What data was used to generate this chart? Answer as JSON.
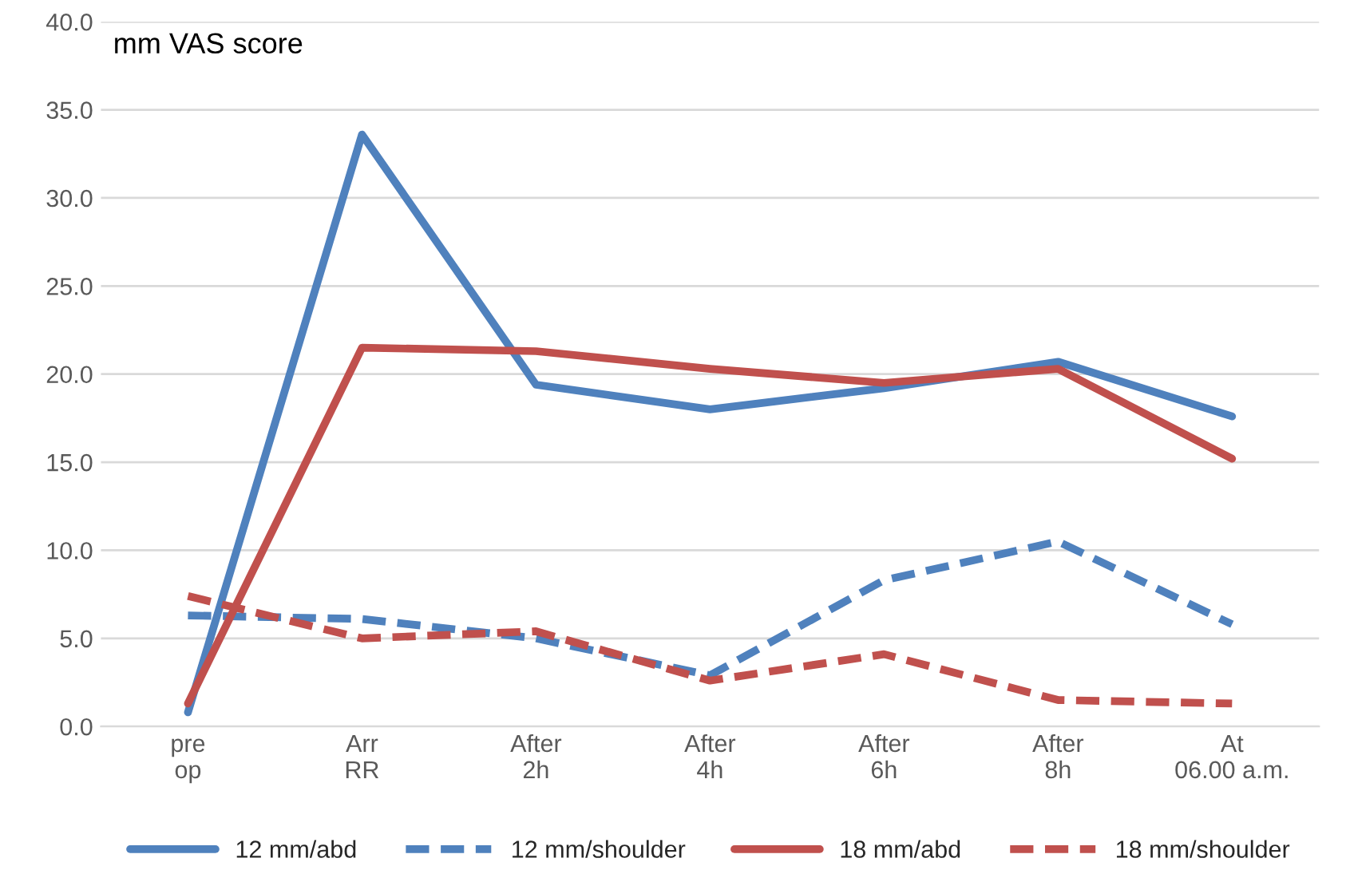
{
  "chart_data": {
    "type": "line",
    "ylabel": "mm VAS score",
    "categories": [
      "pre\nop",
      "Arr\nRR",
      "After\n2h",
      "After\n4h",
      "After\n6h",
      "After\n8h",
      "At\n06.00 a.m."
    ],
    "series": [
      {
        "name": "12 mm/abd",
        "color": "#4f81bd",
        "line_style": "solid",
        "values": [
          0.8,
          33.6,
          19.4,
          18.0,
          19.2,
          20.7,
          17.6
        ]
      },
      {
        "name": "12 mm/shoulder",
        "color": "#4f81bd",
        "line_style": "dashed",
        "values": [
          6.3,
          6.1,
          5.0,
          2.9,
          8.3,
          10.5,
          5.8
        ]
      },
      {
        "name": "18 mm/abd",
        "color": "#c0504d",
        "line_style": "solid",
        "values": [
          1.3,
          21.5,
          21.3,
          20.3,
          19.5,
          20.3,
          15.2
        ]
      },
      {
        "name": "18 mm/shoulder",
        "color": "#c0504d",
        "line_style": "dashed",
        "values": [
          7.4,
          5.0,
          5.4,
          2.6,
          4.1,
          1.5,
          1.3
        ]
      }
    ],
    "ylim": [
      0,
      40
    ],
    "yticks": [
      {
        "value": 0,
        "label": "0.0"
      },
      {
        "value": 5,
        "label": "5.0"
      },
      {
        "value": 10,
        "label": "10.0"
      },
      {
        "value": 15,
        "label": "15.0"
      },
      {
        "value": 20,
        "label": "20.0"
      },
      {
        "value": 25,
        "label": "25.0"
      },
      {
        "value": 30,
        "label": "30.0"
      },
      {
        "value": 35,
        "label": "35.0"
      },
      {
        "value": 40,
        "label": "40.0"
      }
    ],
    "grid": "y",
    "legend": "bottom",
    "marker": "none"
  }
}
